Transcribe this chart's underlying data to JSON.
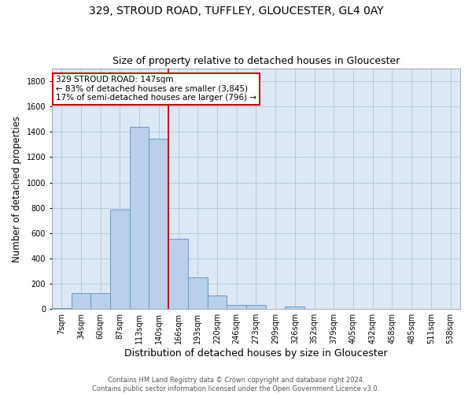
{
  "title": "329, STROUD ROAD, TUFFLEY, GLOUCESTER, GL4 0AY",
  "subtitle": "Size of property relative to detached houses in Gloucester",
  "xlabel": "Distribution of detached houses by size in Gloucester",
  "ylabel": "Number of detached properties",
  "footer_line1": "Contains HM Land Registry data © Crown copyright and database right 2024.",
  "footer_line2": "Contains public sector information licensed under the Open Government Licence v3.0.",
  "bar_labels": [
    "7sqm",
    "34sqm",
    "60sqm",
    "87sqm",
    "113sqm",
    "140sqm",
    "166sqm",
    "193sqm",
    "220sqm",
    "246sqm",
    "273sqm",
    "299sqm",
    "326sqm",
    "352sqm",
    "379sqm",
    "405sqm",
    "432sqm",
    "458sqm",
    "485sqm",
    "511sqm",
    "538sqm"
  ],
  "bar_values": [
    10,
    125,
    125,
    785,
    1440,
    1345,
    555,
    250,
    110,
    35,
    30,
    0,
    20,
    0,
    0,
    0,
    0,
    0,
    0,
    0,
    0
  ],
  "bar_color": "#b8d0ea",
  "bar_edge_color": "#6699cc",
  "vline_x": 5.5,
  "annotation_line1": "329 STROUD ROAD: 147sqm",
  "annotation_line2": "← 83% of detached houses are smaller (3,845)",
  "annotation_line3": "17% of semi-detached houses are larger (796) →",
  "annotation_box_color": "#ffffff",
  "annotation_box_edge": "#cc0000",
  "ylim": [
    0,
    1900
  ],
  "yticks": [
    0,
    200,
    400,
    600,
    800,
    1000,
    1200,
    1400,
    1600,
    1800
  ],
  "bg_color": "#ffffff",
  "ax_bg_color": "#dce9f5",
  "grid_color": "#b0c4d8",
  "title_fontsize": 10,
  "subtitle_fontsize": 9,
  "xlabel_fontsize": 9,
  "ylabel_fontsize": 8.5,
  "tick_fontsize": 7,
  "footer_fontsize": 6
}
